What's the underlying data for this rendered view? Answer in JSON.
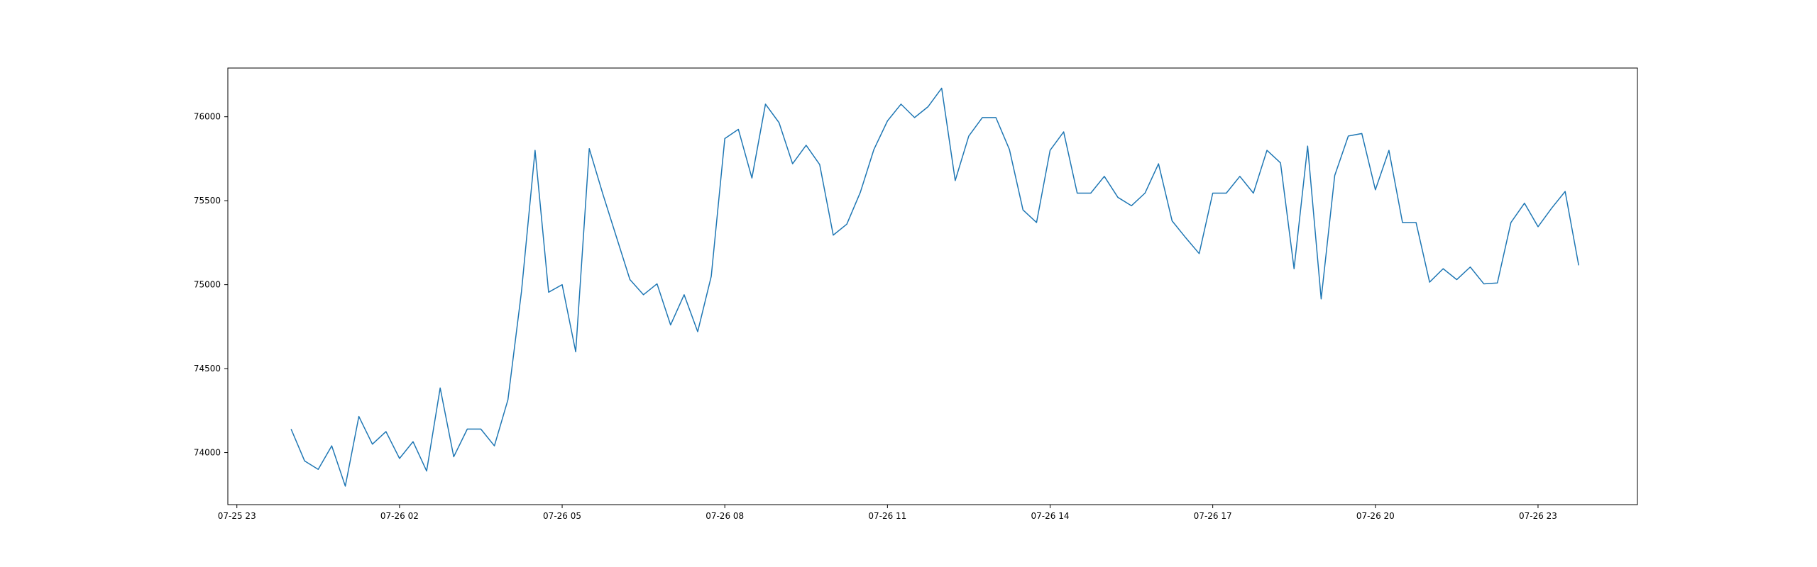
{
  "chart_data": {
    "type": "line",
    "title": "",
    "xlabel": "",
    "ylabel": "",
    "grid": false,
    "legend": "none",
    "line_color": "#1f77b4",
    "x_ticks": [
      "07-25 23",
      "07-26 02",
      "07-26 05",
      "07-26 08",
      "07-26 11",
      "07-26 14",
      "07-26 17",
      "07-26 20",
      "07-26 23"
    ],
    "y_ticks": [
      "74000",
      "74500",
      "75000",
      "75500",
      "76000"
    ],
    "xlim": [
      "07-25 22:50",
      "07-27 00:50"
    ],
    "ylim": [
      73690,
      76290
    ],
    "series": [
      {
        "name": "",
        "x": [
          "07-26 00:00",
          "07-26 00:15",
          "07-26 00:30",
          "07-26 00:45",
          "07-26 01:00",
          "07-26 01:15",
          "07-26 01:30",
          "07-26 01:45",
          "07-26 02:00",
          "07-26 02:15",
          "07-26 02:30",
          "07-26 02:45",
          "07-26 03:00",
          "07-26 03:15",
          "07-26 03:30",
          "07-26 03:45",
          "07-26 04:00",
          "07-26 04:15",
          "07-26 04:30",
          "07-26 04:45",
          "07-26 05:00",
          "07-26 05:15",
          "07-26 05:30",
          "07-26 05:45",
          "07-26 06:00",
          "07-26 06:15",
          "07-26 06:30",
          "07-26 06:45",
          "07-26 07:00",
          "07-26 07:15",
          "07-26 07:30",
          "07-26 07:45",
          "07-26 08:00",
          "07-26 08:15",
          "07-26 08:30",
          "07-26 08:45",
          "07-26 09:00",
          "07-26 09:15",
          "07-26 09:30",
          "07-26 09:45",
          "07-26 10:00",
          "07-26 10:15",
          "07-26 10:30",
          "07-26 10:45",
          "07-26 11:00",
          "07-26 11:15",
          "07-26 11:30",
          "07-26 11:45",
          "07-26 12:00",
          "07-26 12:15",
          "07-26 12:30",
          "07-26 12:45",
          "07-26 13:00",
          "07-26 13:15",
          "07-26 13:30",
          "07-26 13:45",
          "07-26 14:00",
          "07-26 14:15",
          "07-26 14:30",
          "07-26 14:45",
          "07-26 15:00",
          "07-26 15:15",
          "07-26 15:30",
          "07-26 15:45",
          "07-26 16:00",
          "07-26 16:15",
          "07-26 16:30",
          "07-26 16:45",
          "07-26 17:00",
          "07-26 17:15",
          "07-26 17:30",
          "07-26 17:45",
          "07-26 18:00",
          "07-26 18:15",
          "07-26 18:30",
          "07-26 18:45",
          "07-26 19:00",
          "07-26 19:15",
          "07-26 19:30",
          "07-26 19:45",
          "07-26 20:00",
          "07-26 20:15",
          "07-26 20:30",
          "07-26 20:45",
          "07-26 21:00",
          "07-26 21:15",
          "07-26 21:30",
          "07-26 21:45",
          "07-26 22:00",
          "07-26 22:15",
          "07-26 22:30",
          "07-26 22:45",
          "07-26 23:00",
          "07-26 23:15",
          "07-26 23:30",
          "07-26 23:45"
        ],
        "y": [
          74140,
          73950,
          73900,
          74040,
          73800,
          74215,
          74050,
          74125,
          73965,
          74065,
          73890,
          74385,
          73975,
          74140,
          74140,
          74040,
          74315,
          74960,
          75800,
          74955,
          75000,
          74600,
          75810,
          75540,
          75285,
          75030,
          74940,
          75005,
          74760,
          74940,
          74720,
          75050,
          75870,
          75925,
          75635,
          76075,
          75965,
          75720,
          75830,
          75715,
          75295,
          75360,
          75550,
          75805,
          75975,
          76075,
          75995,
          76060,
          76170,
          75620,
          75885,
          75995,
          75995,
          75805,
          75445,
          75370,
          75800,
          75910,
          75545,
          75545,
          75645,
          75520,
          75470,
          75545,
          75720,
          75380,
          75280,
          75185,
          75545,
          75545,
          75645,
          75545,
          75800,
          75725,
          75095,
          75825,
          74915,
          75650,
          75885,
          75900,
          75565,
          75800,
          75370,
          75370,
          75015,
          75095,
          75030,
          75105,
          75005,
          75010,
          75370,
          75485,
          75345,
          75455,
          75555,
          75115
        ]
      }
    ]
  }
}
